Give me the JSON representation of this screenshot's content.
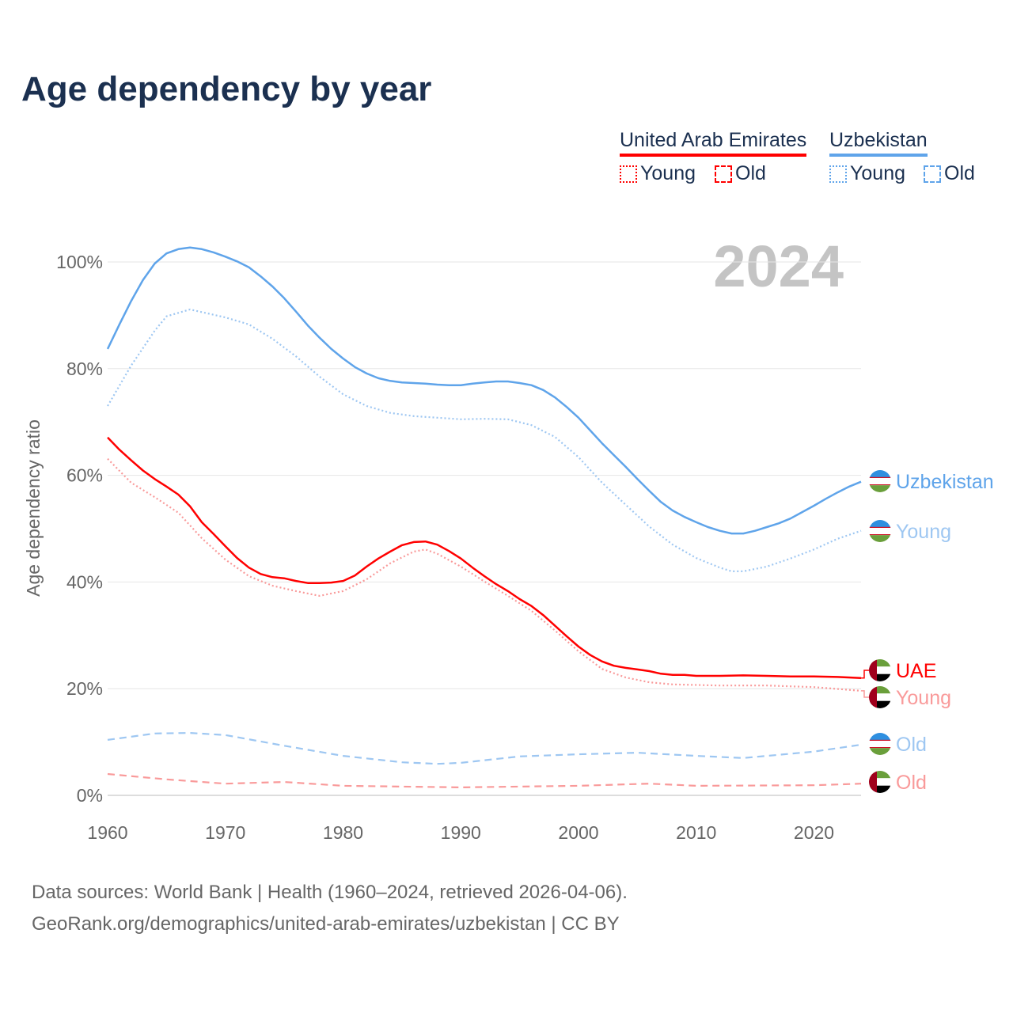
{
  "title": "Age dependency by year",
  "legend": {
    "countries": [
      {
        "name": "United Arab Emirates",
        "color": "#ff0000"
      },
      {
        "name": "Uzbekistan",
        "color": "#5fa4ea"
      }
    ],
    "young_label": "Young",
    "old_label": "Old"
  },
  "footer": {
    "line1": "Data sources: World Bank | Health (1960–2024, retrieved 2026-04-06).",
    "line2": "GeoRank.org/demographics/united-arab-emirates/uzbekistan | CC BY"
  },
  "chart_data": {
    "type": "line",
    "title": "Age dependency by year",
    "year_watermark": "2024",
    "xlabel": "",
    "ylabel": "Age dependency ratio",
    "xlim": [
      1960,
      2024
    ],
    "ylim": [
      0,
      100
    ],
    "x_ticks": [
      "1960",
      "1970",
      "1980",
      "1990",
      "2000",
      "2010",
      "2020"
    ],
    "y_ticks": [
      "0%",
      "20%",
      "40%",
      "60%",
      "80%",
      "100%"
    ],
    "grid": true,
    "series": [
      {
        "name": "Uzbekistan",
        "end_label": "Uzbekistan",
        "country": "UZ",
        "style": "solid",
        "color": "#5fa4ea",
        "points": [
          [
            1960,
            83.7
          ],
          [
            1961,
            88.3
          ],
          [
            1962,
            92.7
          ],
          [
            1963,
            96.6
          ],
          [
            1964,
            99.7
          ],
          [
            1965,
            101.6
          ],
          [
            1966,
            102.4
          ],
          [
            1967,
            102.7
          ],
          [
            1968,
            102.4
          ],
          [
            1969,
            101.8
          ],
          [
            1970,
            101.0
          ],
          [
            1971,
            100.1
          ],
          [
            1972,
            99.0
          ],
          [
            1973,
            97.3
          ],
          [
            1974,
            95.4
          ],
          [
            1975,
            93.2
          ],
          [
            1976,
            90.7
          ],
          [
            1977,
            88.1
          ],
          [
            1978,
            85.8
          ],
          [
            1979,
            83.7
          ],
          [
            1980,
            81.9
          ],
          [
            1981,
            80.3
          ],
          [
            1982,
            79.1
          ],
          [
            1983,
            78.2
          ],
          [
            1984,
            77.7
          ],
          [
            1985,
            77.4
          ],
          [
            1986,
            77.3
          ],
          [
            1987,
            77.2
          ],
          [
            1988,
            77.0
          ],
          [
            1989,
            76.9
          ],
          [
            1990,
            76.9
          ],
          [
            1991,
            77.2
          ],
          [
            1992,
            77.4
          ],
          [
            1993,
            77.6
          ],
          [
            1994,
            77.6
          ],
          [
            1995,
            77.3
          ],
          [
            1996,
            76.9
          ],
          [
            1997,
            76.0
          ],
          [
            1998,
            74.6
          ],
          [
            1999,
            72.8
          ],
          [
            2000,
            70.8
          ],
          [
            2001,
            68.4
          ],
          [
            2002,
            66.0
          ],
          [
            2003,
            63.8
          ],
          [
            2004,
            61.6
          ],
          [
            2005,
            59.3
          ],
          [
            2006,
            57.1
          ],
          [
            2007,
            55.0
          ],
          [
            2008,
            53.4
          ],
          [
            2009,
            52.2
          ],
          [
            2010,
            51.2
          ],
          [
            2011,
            50.3
          ],
          [
            2012,
            49.6
          ],
          [
            2013,
            49.1
          ],
          [
            2014,
            49.1
          ],
          [
            2015,
            49.6
          ],
          [
            2016,
            50.3
          ],
          [
            2017,
            51.0
          ],
          [
            2018,
            51.9
          ],
          [
            2019,
            53.1
          ],
          [
            2020,
            54.3
          ],
          [
            2021,
            55.6
          ],
          [
            2022,
            56.8
          ],
          [
            2023,
            57.9
          ],
          [
            2024,
            58.8
          ]
        ]
      },
      {
        "name": "Uzbekistan Young",
        "end_label": "Young",
        "country": "UZ",
        "style": "dotted",
        "color": "#9ec7f2",
        "points": [
          [
            1960,
            73.0
          ],
          [
            1962,
            80.6
          ],
          [
            1964,
            87.1
          ],
          [
            1965,
            89.8
          ],
          [
            1967,
            91.1
          ],
          [
            1970,
            89.6
          ],
          [
            1972,
            88.3
          ],
          [
            1974,
            85.6
          ],
          [
            1976,
            82.3
          ],
          [
            1978,
            78.5
          ],
          [
            1980,
            75.2
          ],
          [
            1982,
            73.0
          ],
          [
            1984,
            71.7
          ],
          [
            1986,
            71.1
          ],
          [
            1988,
            70.8
          ],
          [
            1990,
            70.5
          ],
          [
            1992,
            70.6
          ],
          [
            1994,
            70.5
          ],
          [
            1996,
            69.4
          ],
          [
            1998,
            67.2
          ],
          [
            2000,
            63.4
          ],
          [
            2002,
            58.6
          ],
          [
            2004,
            54.5
          ],
          [
            2006,
            50.4
          ],
          [
            2008,
            47.0
          ],
          [
            2010,
            44.5
          ],
          [
            2012,
            42.7
          ],
          [
            2013,
            42.0
          ],
          [
            2014,
            42.0
          ],
          [
            2016,
            42.9
          ],
          [
            2018,
            44.4
          ],
          [
            2020,
            46.1
          ],
          [
            2022,
            48.1
          ],
          [
            2024,
            49.6
          ]
        ]
      },
      {
        "name": "Uzbekistan Old",
        "end_label": "Old",
        "country": "UZ",
        "style": "dashed",
        "color": "#9ec7f2",
        "points": [
          [
            1960,
            10.4
          ],
          [
            1964,
            11.6
          ],
          [
            1967,
            11.7
          ],
          [
            1970,
            11.3
          ],
          [
            1975,
            9.3
          ],
          [
            1980,
            7.4
          ],
          [
            1985,
            6.2
          ],
          [
            1988,
            5.9
          ],
          [
            1990,
            6.1
          ],
          [
            1995,
            7.3
          ],
          [
            2000,
            7.7
          ],
          [
            2005,
            8.0
          ],
          [
            2010,
            7.4
          ],
          [
            2014,
            7.0
          ],
          [
            2020,
            8.2
          ],
          [
            2024,
            9.5
          ]
        ]
      },
      {
        "name": "United Arab Emirates",
        "end_label": "UAE",
        "country": "AE",
        "style": "solid",
        "color": "#ff0000",
        "points": [
          [
            1960,
            67.1
          ],
          [
            1961,
            64.8
          ],
          [
            1962,
            62.8
          ],
          [
            1963,
            60.9
          ],
          [
            1964,
            59.3
          ],
          [
            1965,
            57.9
          ],
          [
            1966,
            56.4
          ],
          [
            1967,
            54.2
          ],
          [
            1968,
            51.2
          ],
          [
            1969,
            49.0
          ],
          [
            1970,
            46.7
          ],
          [
            1971,
            44.5
          ],
          [
            1972,
            42.7
          ],
          [
            1973,
            41.5
          ],
          [
            1974,
            40.9
          ],
          [
            1975,
            40.7
          ],
          [
            1976,
            40.2
          ],
          [
            1977,
            39.8
          ],
          [
            1978,
            39.8
          ],
          [
            1979,
            39.9
          ],
          [
            1980,
            40.2
          ],
          [
            1981,
            41.2
          ],
          [
            1982,
            42.9
          ],
          [
            1983,
            44.4
          ],
          [
            1984,
            45.7
          ],
          [
            1985,
            46.9
          ],
          [
            1986,
            47.5
          ],
          [
            1987,
            47.6
          ],
          [
            1988,
            47.0
          ],
          [
            1989,
            45.8
          ],
          [
            1990,
            44.4
          ],
          [
            1991,
            42.7
          ],
          [
            1992,
            41.1
          ],
          [
            1993,
            39.6
          ],
          [
            1994,
            38.3
          ],
          [
            1995,
            36.8
          ],
          [
            1996,
            35.5
          ],
          [
            1997,
            33.8
          ],
          [
            1998,
            31.8
          ],
          [
            1999,
            29.8
          ],
          [
            2000,
            27.9
          ],
          [
            2001,
            26.3
          ],
          [
            2002,
            25.1
          ],
          [
            2003,
            24.3
          ],
          [
            2004,
            23.9
          ],
          [
            2005,
            23.6
          ],
          [
            2006,
            23.3
          ],
          [
            2007,
            22.8
          ],
          [
            2008,
            22.6
          ],
          [
            2009,
            22.6
          ],
          [
            2010,
            22.4
          ],
          [
            2012,
            22.4
          ],
          [
            2014,
            22.5
          ],
          [
            2016,
            22.4
          ],
          [
            2018,
            22.3
          ],
          [
            2020,
            22.3
          ],
          [
            2022,
            22.2
          ],
          [
            2024,
            22.0
          ]
        ]
      },
      {
        "name": "United Arab Emirates Young",
        "end_label": "Young",
        "country": "AE",
        "style": "dotted",
        "color": "#f99a9a",
        "points": [
          [
            1960,
            63.1
          ],
          [
            1962,
            58.6
          ],
          [
            1964,
            55.9
          ],
          [
            1966,
            53.0
          ],
          [
            1968,
            48.2
          ],
          [
            1970,
            44.2
          ],
          [
            1972,
            41.1
          ],
          [
            1974,
            39.3
          ],
          [
            1976,
            38.3
          ],
          [
            1978,
            37.4
          ],
          [
            1980,
            38.3
          ],
          [
            1982,
            40.5
          ],
          [
            1984,
            43.5
          ],
          [
            1986,
            45.7
          ],
          [
            1987,
            46.1
          ],
          [
            1988,
            45.3
          ],
          [
            1990,
            42.9
          ],
          [
            1992,
            40.1
          ],
          [
            1994,
            37.4
          ],
          [
            1996,
            34.6
          ],
          [
            1998,
            30.9
          ],
          [
            2000,
            27.0
          ],
          [
            2002,
            23.7
          ],
          [
            2004,
            22.1
          ],
          [
            2006,
            21.2
          ],
          [
            2008,
            20.8
          ],
          [
            2012,
            20.6
          ],
          [
            2016,
            20.6
          ],
          [
            2020,
            20.3
          ],
          [
            2024,
            19.6
          ]
        ]
      },
      {
        "name": "United Arab Emirates Old",
        "end_label": "Old",
        "country": "AE",
        "style": "dashed",
        "color": "#f99a9a",
        "points": [
          [
            1960,
            4.0
          ],
          [
            1965,
            3.0
          ],
          [
            1970,
            2.2
          ],
          [
            1975,
            2.5
          ],
          [
            1980,
            1.8
          ],
          [
            1990,
            1.5
          ],
          [
            2000,
            1.8
          ],
          [
            2006,
            2.2
          ],
          [
            2010,
            1.8
          ],
          [
            2020,
            1.9
          ],
          [
            2024,
            2.2
          ]
        ]
      }
    ]
  }
}
